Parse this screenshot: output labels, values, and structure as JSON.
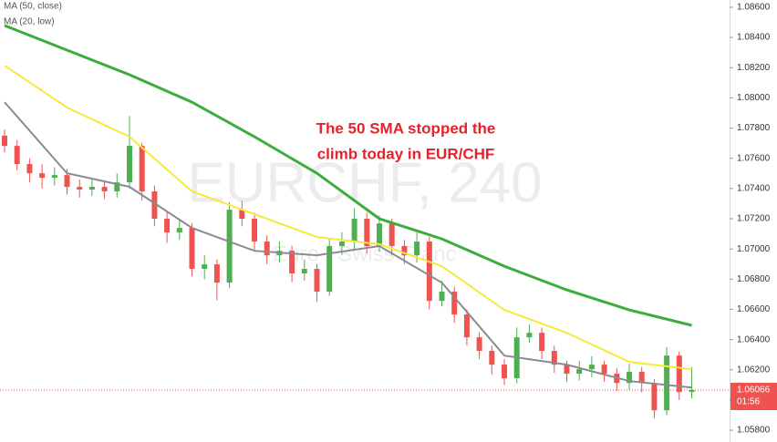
{
  "chart_data": {
    "type": "candlestick",
    "watermark": "EURCHF, 240",
    "watermark_subtitle": "Euro / Swiss Franc",
    "annotation": [
      "The 50 SMA stopped the",
      "climb today in EUR/CHF"
    ],
    "ylim": [
      1.05722,
      1.08648
    ],
    "yticks": [
      {
        "value": 1.086,
        "label": "1.08600"
      },
      {
        "value": 1.084,
        "label": "1.08400"
      },
      {
        "value": 1.082,
        "label": "1.08200"
      },
      {
        "value": 1.08,
        "label": "1.08000"
      },
      {
        "value": 1.078,
        "label": "1.07800"
      },
      {
        "value": 1.076,
        "label": "1.07600"
      },
      {
        "value": 1.074,
        "label": "1.07400"
      },
      {
        "value": 1.072,
        "label": "1.07200"
      },
      {
        "value": 1.07,
        "label": "1.07000"
      },
      {
        "value": 1.068,
        "label": "1.06800"
      },
      {
        "value": 1.066,
        "label": "1.06600"
      },
      {
        "value": 1.064,
        "label": "1.06400"
      },
      {
        "value": 1.062,
        "label": "1.06200"
      },
      {
        "value": 1.06,
        "label": "1.06000"
      },
      {
        "value": 1.058,
        "label": "1.05800"
      }
    ],
    "grid": false,
    "last_price": 1.06066,
    "countdown": "01:56",
    "last_price_color": "#ef5350",
    "candles": {
      "up_color": "#4caf50",
      "down_color": "#ef5350",
      "open": [
        1.0775,
        1.07682,
        1.07562,
        1.07501,
        1.07471,
        1.07489,
        1.07411,
        1.07393,
        1.07411,
        1.07381,
        1.07441,
        1.07682,
        1.07381,
        1.072,
        1.07109,
        1.07139,
        1.06868,
        1.06898,
        1.06777,
        1.0726,
        1.072,
        1.07049,
        1.06958,
        1.06988,
        1.06838,
        1.06868,
        1.06717,
        1.07019,
        1.07049,
        1.072,
        1.07019,
        1.07169,
        1.07019,
        1.06958,
        1.07049,
        1.06656,
        1.06717,
        1.06566,
        1.06415,
        1.06325,
        1.06234,
        1.06144,
        1.06415,
        1.06445,
        1.06325,
        1.06234,
        1.06174,
        1.06204,
        1.06234,
        1.06174,
        1.06113,
        1.06186,
        1.06113,
        1.05932,
        1.06294,
        1.06053
      ],
      "high": [
        1.0779,
        1.0772,
        1.076,
        1.0756,
        1.0754,
        1.0753,
        1.0746,
        1.0747,
        1.0745,
        1.075,
        1.0788,
        1.077,
        1.0742,
        1.0725,
        1.072,
        1.0717,
        1.0696,
        1.0693,
        1.0731,
        1.0732,
        1.0724,
        1.0709,
        1.0705,
        1.0702,
        1.0693,
        1.069,
        1.0707,
        1.0711,
        1.0727,
        1.0724,
        1.0722,
        1.072,
        1.0706,
        1.0711,
        1.0708,
        1.0679,
        1.0675,
        1.066,
        1.0645,
        1.0636,
        1.0627,
        1.0648,
        1.065,
        1.0648,
        1.0636,
        1.0626,
        1.0626,
        1.0629,
        1.0626,
        1.0621,
        1.0624,
        1.0622,
        1.0614,
        1.0635,
        1.0632,
        1.0622
      ],
      "low": [
        1.0764,
        1.0752,
        1.0744,
        1.074,
        1.0742,
        1.0736,
        1.0734,
        1.0735,
        1.0733,
        1.0734,
        1.074,
        1.0732,
        1.0715,
        1.0704,
        1.0706,
        1.0682,
        1.068,
        1.0666,
        1.0674,
        1.0715,
        1.0699,
        1.069,
        1.0691,
        1.0678,
        1.0679,
        1.0665,
        1.0669,
        1.0696,
        1.07,
        1.0697,
        1.0698,
        1.0696,
        1.069,
        1.0691,
        1.066,
        1.0662,
        1.0651,
        1.0636,
        1.0627,
        1.0617,
        1.061,
        1.0611,
        1.0638,
        1.0627,
        1.0618,
        1.0612,
        1.0613,
        1.0615,
        1.0612,
        1.0606,
        1.0607,
        1.0605,
        1.0588,
        1.059,
        1.06,
        1.0601
      ],
      "close": [
        1.07682,
        1.07562,
        1.07501,
        1.07471,
        1.07489,
        1.07411,
        1.07393,
        1.07411,
        1.07381,
        1.07441,
        1.07682,
        1.07381,
        1.072,
        1.07109,
        1.07139,
        1.06868,
        1.06898,
        1.06777,
        1.0726,
        1.072,
        1.07049,
        1.06958,
        1.06988,
        1.06838,
        1.06868,
        1.06717,
        1.07019,
        1.07049,
        1.072,
        1.07019,
        1.07169,
        1.07019,
        1.06958,
        1.07049,
        1.06656,
        1.06717,
        1.06566,
        1.06415,
        1.06325,
        1.06234,
        1.06144,
        1.06415,
        1.06445,
        1.06325,
        1.06234,
        1.06174,
        1.06204,
        1.06234,
        1.06174,
        1.06113,
        1.06186,
        1.06113,
        1.05932,
        1.06294,
        1.06053,
        1.06066
      ]
    },
    "series": [
      {
        "color": "#3cac3c",
        "x": [
          0,
          5,
          10,
          15,
          20,
          25,
          30,
          35,
          40,
          45,
          50,
          55
        ],
        "values": [
          1.08479,
          1.08316,
          1.08153,
          1.07972,
          1.07743,
          1.07501,
          1.072,
          1.07067,
          1.06886,
          1.06729,
          1.06596,
          1.06494
        ]
      },
      {
        "name": "MA (50, close)",
        "color": "#f5e93a",
        "x": [
          0,
          5,
          10,
          15,
          20,
          25,
          30,
          35,
          40,
          45,
          50,
          55
        ],
        "values": [
          1.08214,
          1.07936,
          1.07743,
          1.07381,
          1.0723,
          1.07079,
          1.07031,
          1.06886,
          1.06596,
          1.06445,
          1.06252,
          1.06204
        ]
      },
      {
        "name": "MA (20, low)",
        "color": "#8a8a92",
        "x": [
          0,
          5,
          10,
          15,
          20,
          25,
          30,
          35,
          40,
          45,
          50,
          55
        ],
        "values": [
          1.07972,
          1.07501,
          1.07411,
          1.07139,
          1.06988,
          1.06958,
          1.07019,
          1.06777,
          1.06294,
          1.06234,
          1.06125,
          1.06083
        ]
      }
    ]
  }
}
